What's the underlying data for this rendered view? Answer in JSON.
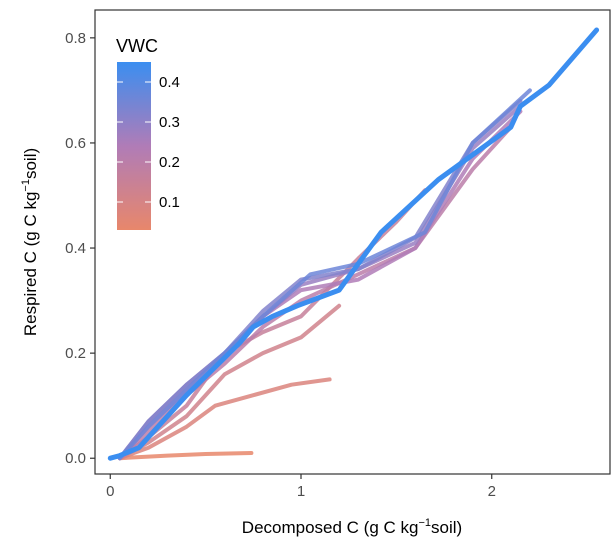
{
  "chart_data": {
    "type": "line",
    "title": "",
    "xlabel": {
      "main": "Decomposed C (g C kg",
      "sup": "−1",
      "tail": "soil)"
    },
    "ylabel": {
      "main": "Respired C (g C kg",
      "sup": "−1",
      "tail": "soil)"
    },
    "xlim": [
      -0.08,
      2.62
    ],
    "ylim": [
      -0.03,
      0.853
    ],
    "x_ticks": [
      0,
      1,
      2
    ],
    "x_tick_labels": [
      "0",
      "1",
      "2"
    ],
    "y_ticks": [
      0.0,
      0.2,
      0.4,
      0.6,
      0.8
    ],
    "y_tick_labels": [
      "0.0",
      "0.2",
      "0.4",
      "0.6",
      "0.8"
    ],
    "grid": false,
    "legend": {
      "title": "VWC",
      "position": "top-left",
      "range": [
        0.03,
        0.45
      ],
      "ticks": [
        0.1,
        0.2,
        0.3,
        0.4
      ],
      "tick_labels": [
        "0.1",
        "0.2",
        "0.3",
        "0.4"
      ],
      "color_low": "#E8876B",
      "color_high": "#3B8EF0"
    },
    "series": [
      {
        "vwc": 0.03,
        "x": [
          0.05,
          0.3,
          0.5,
          0.74
        ],
        "y": [
          0.0,
          0.005,
          0.008,
          0.01
        ]
      },
      {
        "vwc": 0.08,
        "x": [
          0.05,
          0.2,
          0.4,
          0.55,
          0.75,
          0.95,
          1.15
        ],
        "y": [
          0.0,
          0.02,
          0.06,
          0.1,
          0.12,
          0.14,
          0.15
        ]
      },
      {
        "vwc": 0.12,
        "x": [
          0.05,
          0.2,
          0.4,
          0.6,
          0.8,
          1.0,
          1.2
        ],
        "y": [
          0.0,
          0.03,
          0.08,
          0.16,
          0.2,
          0.23,
          0.29
        ]
      },
      {
        "vwc": 0.16,
        "x": [
          0.05,
          0.2,
          0.4,
          0.6,
          0.8,
          1.0,
          1.3,
          1.5,
          1.65
        ],
        "y": [
          0.0,
          0.04,
          0.1,
          0.2,
          0.24,
          0.27,
          0.38,
          0.45,
          0.51
        ]
      },
      {
        "vwc": 0.2,
        "x": [
          0.05,
          0.2,
          0.4,
          0.6,
          0.8,
          1.0,
          1.3,
          1.6,
          1.9,
          2.1
        ],
        "y": [
          0.0,
          0.05,
          0.12,
          0.18,
          0.25,
          0.3,
          0.35,
          0.4,
          0.55,
          0.63
        ]
      },
      {
        "vwc": 0.24,
        "x": [
          0.05,
          0.2,
          0.4,
          0.6,
          0.8,
          1.0,
          1.3,
          1.6,
          1.9,
          2.15
        ],
        "y": [
          0.0,
          0.06,
          0.13,
          0.2,
          0.27,
          0.32,
          0.34,
          0.4,
          0.57,
          0.66
        ]
      },
      {
        "vwc": 0.28,
        "x": [
          0.05,
          0.2,
          0.4,
          0.6,
          0.8,
          1.0,
          1.3,
          1.6,
          1.9,
          2.15
        ],
        "y": [
          0.0,
          0.07,
          0.14,
          0.2,
          0.27,
          0.33,
          0.36,
          0.41,
          0.59,
          0.67
        ]
      },
      {
        "vwc": 0.32,
        "x": [
          0.05,
          0.2,
          0.4,
          0.6,
          0.8,
          1.0,
          1.3,
          1.6,
          1.9,
          2.15
        ],
        "y": [
          0.0,
          0.07,
          0.14,
          0.2,
          0.28,
          0.34,
          0.36,
          0.42,
          0.6,
          0.68
        ]
      },
      {
        "vwc": 0.36,
        "x": [
          0.05,
          0.2,
          0.4,
          0.6,
          0.8,
          1.05,
          1.3,
          1.65,
          1.9,
          2.2
        ],
        "y": [
          0.0,
          0.06,
          0.13,
          0.2,
          0.27,
          0.35,
          0.37,
          0.43,
          0.6,
          0.7
        ]
      },
      {
        "vwc": 0.45,
        "x": [
          0.0,
          0.05,
          0.15,
          0.4,
          0.68,
          0.75,
          0.85,
          0.98,
          1.2,
          1.42,
          1.72,
          2.1,
          2.15,
          2.3,
          2.55
        ],
        "y": [
          0.0,
          0.005,
          0.02,
          0.12,
          0.22,
          0.25,
          0.27,
          0.29,
          0.32,
          0.43,
          0.53,
          0.63,
          0.67,
          0.71,
          0.815
        ]
      }
    ]
  }
}
